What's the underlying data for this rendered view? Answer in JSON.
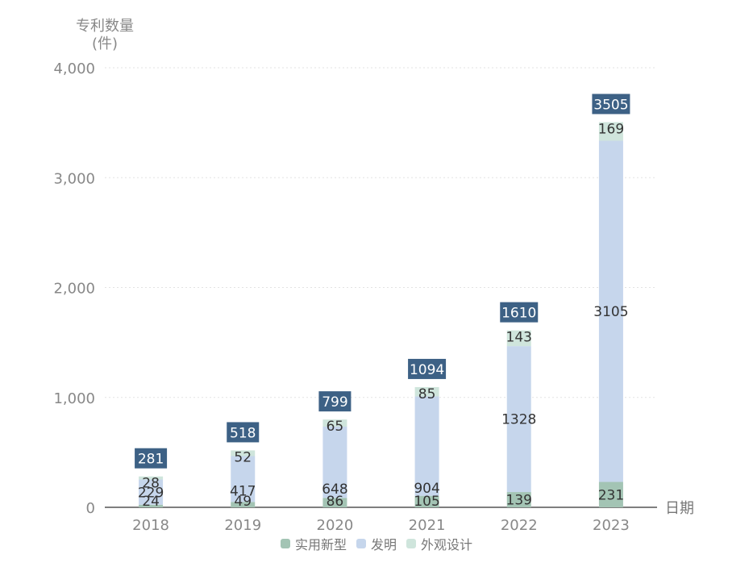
{
  "chart_data": {
    "type": "bar",
    "stacked": true,
    "categories": [
      "2018",
      "2019",
      "2020",
      "2021",
      "2022",
      "2023"
    ],
    "series": [
      {
        "name": "实用新型",
        "color": "#a3c4b4",
        "values": [
          24,
          49,
          86,
          105,
          139,
          231
        ]
      },
      {
        "name": "发明",
        "color": "#c6d6ec",
        "values": [
          229,
          417,
          648,
          904,
          1328,
          3105
        ]
      },
      {
        "name": "外观设计",
        "color": "#cfe5dc",
        "values": [
          28,
          52,
          65,
          85,
          143,
          169
        ]
      }
    ],
    "totals": [
      281,
      518,
      799,
      1094,
      1610,
      3505
    ],
    "total_label_color": "#3d6185",
    "ylabel_line1": "专利数量",
    "ylabel_line2": "(件)",
    "xlabel": "日期",
    "ylim": [
      0,
      4000
    ],
    "yticks": [
      "0",
      "1,000",
      "2,000",
      "3,000",
      "4,000"
    ],
    "grid": true,
    "legend_position": "bottom"
  }
}
